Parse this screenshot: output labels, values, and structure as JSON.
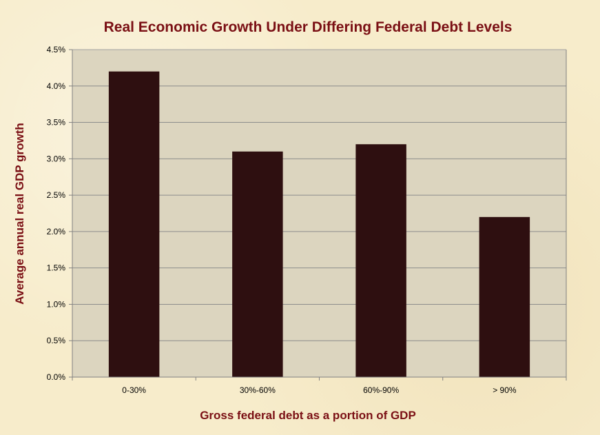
{
  "chart_data": {
    "type": "bar",
    "title": "Real Economic Growth Under Differing Federal Debt Levels",
    "xlabel": "Gross federal debt as a portion of GDP",
    "ylabel": "Average annual real GDP growth",
    "categories": [
      "0-30%",
      "30%-60%",
      "60%-90%",
      "> 90%"
    ],
    "values": [
      4.2,
      3.1,
      3.2,
      2.2
    ],
    "ylim": [
      0,
      4.5
    ],
    "yticks": [
      "0.0%",
      "0.5%",
      "1.0%",
      "1.5%",
      "2.0%",
      "2.5%",
      "3.0%",
      "3.5%",
      "4.0%",
      "4.5%"
    ],
    "grid": true,
    "legend": "none",
    "colors": {
      "bar": "#2e0f10",
      "plot_background": "#dcd5bf",
      "title": "#7a0f14",
      "gridline": "#8c8c8c"
    }
  }
}
